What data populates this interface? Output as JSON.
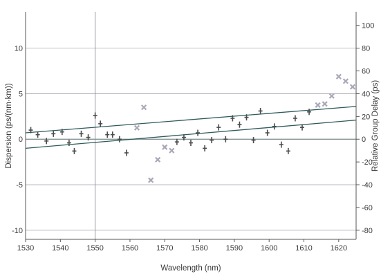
{
  "chart_data": {
    "type": "scatter",
    "xlabel": "Wavelength (nm)",
    "ylabel": "Dispersion (ps/(nm·km))",
    "y2label": "Relative Group Delay (ps)",
    "xlim": [
      1530,
      1625
    ],
    "ylim": [
      -11,
      14
    ],
    "y2lim": [
      -88,
      112
    ],
    "x_ticks": [
      1530,
      1540,
      1550,
      1560,
      1570,
      1580,
      1590,
      1600,
      1610,
      1620
    ],
    "y_ticks": [
      -10,
      -5,
      0,
      5,
      10
    ],
    "y2_ticks": [
      -80,
      -60,
      -40,
      -20,
      0,
      20,
      40,
      60,
      80,
      100
    ],
    "grid": true,
    "colors": {
      "dispersion_marker": "#4a4a4a",
      "delay_marker": "#a8a8b8",
      "lines": "#2f5a5a",
      "grid": "#a8a8b4",
      "axes": "#555555"
    },
    "series": [
      {
        "marker": "plus",
        "axis": "left",
        "points": [
          [
            1531.5,
            1.0
          ],
          [
            1533.5,
            0.5
          ],
          [
            1536,
            -0.2
          ],
          [
            1538,
            0.6
          ],
          [
            1540.5,
            0.8
          ],
          [
            1542.5,
            -0.4
          ],
          [
            1544,
            -1.3
          ],
          [
            1546,
            0.6
          ],
          [
            1548,
            0.2
          ],
          [
            1550,
            2.6
          ],
          [
            1551.5,
            1.7
          ],
          [
            1553.5,
            0.5
          ],
          [
            1555,
            0.5
          ],
          [
            1557,
            0.0
          ],
          [
            1559,
            -1.5
          ],
          [
            1573.5,
            -0.3
          ],
          [
            1575.5,
            0.2
          ],
          [
            1577.5,
            -0.4
          ],
          [
            1579.5,
            0.7
          ],
          [
            1581.5,
            -1.0
          ],
          [
            1583.5,
            -0.1
          ],
          [
            1585.5,
            1.3
          ],
          [
            1587.5,
            0.0
          ],
          [
            1589.5,
            2.3
          ],
          [
            1591.5,
            1.6
          ],
          [
            1593.5,
            2.4
          ],
          [
            1595.5,
            -0.1
          ],
          [
            1597.5,
            3.1
          ],
          [
            1599.5,
            0.7
          ],
          [
            1601.5,
            1.4
          ],
          [
            1603.5,
            -0.6
          ],
          [
            1605.5,
            -1.3
          ],
          [
            1607.5,
            2.3
          ],
          [
            1609.5,
            1.3
          ],
          [
            1611.5,
            3.0
          ]
        ]
      },
      {
        "marker": "cross",
        "axis": "right",
        "points": [
          [
            1562,
            10
          ],
          [
            1564,
            28
          ],
          [
            1566,
            -36
          ],
          [
            1568,
            -18
          ],
          [
            1570,
            -7
          ],
          [
            1572,
            -10
          ],
          [
            1614,
            30
          ],
          [
            1616,
            31
          ],
          [
            1618,
            38
          ],
          [
            1620,
            55
          ],
          [
            1622,
            51
          ],
          [
            1624,
            46
          ]
        ]
      },
      {
        "marker": "line",
        "axis": "left",
        "points": [
          [
            1530,
            0.7
          ],
          [
            1625,
            3.6
          ]
        ]
      },
      {
        "marker": "line",
        "axis": "left",
        "points": [
          [
            1530,
            -1.0
          ],
          [
            1625,
            2.1
          ]
        ]
      }
    ]
  }
}
